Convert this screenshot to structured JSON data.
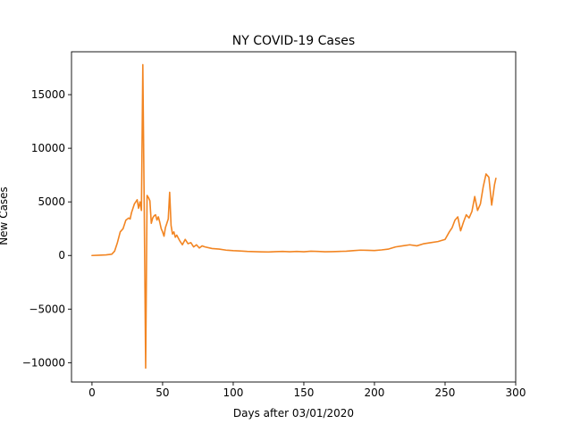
{
  "chart_data": {
    "type": "line",
    "title": "NY COVID-19 Cases",
    "xlabel": "Days after 03/01/2020",
    "ylabel": "New Cases",
    "xlim": [
      -14.5,
      300
    ],
    "ylim": [
      -11800,
      19000
    ],
    "x_ticks": [
      0,
      50,
      100,
      150,
      200,
      250,
      300
    ],
    "y_ticks": [
      -10000,
      -5000,
      0,
      5000,
      10000,
      15000
    ],
    "grid": false,
    "legend": "none",
    "series": [
      {
        "color": "#f28522",
        "x": [
          0,
          5,
          10,
          14,
          16,
          18,
          20,
          22,
          24,
          26,
          27,
          28,
          30,
          32,
          33,
          34,
          35,
          36,
          37,
          38,
          39,
          40,
          41,
          42,
          43,
          44,
          45,
          46,
          47,
          48,
          49,
          50,
          51,
          52,
          53,
          54,
          55,
          56,
          57,
          58,
          59,
          60,
          62,
          64,
          66,
          68,
          70,
          72,
          74,
          76,
          78,
          80,
          85,
          90,
          95,
          100,
          105,
          110,
          115,
          120,
          125,
          130,
          135,
          140,
          145,
          150,
          155,
          160,
          165,
          170,
          175,
          180,
          185,
          190,
          195,
          200,
          205,
          210,
          215,
          220,
          225,
          230,
          235,
          240,
          245,
          250,
          253,
          255,
          257,
          259,
          261,
          263,
          265,
          267,
          269,
          271,
          273,
          275,
          277,
          279,
          281,
          283,
          285,
          286
        ],
        "y": [
          0,
          30,
          60,
          120,
          400,
          1200,
          2200,
          2500,
          3300,
          3500,
          3400,
          4000,
          4800,
          5200,
          4400,
          5000,
          4200,
          17800,
          4500,
          -10500,
          5600,
          5400,
          5100,
          3000,
          3500,
          3700,
          3800,
          3300,
          3600,
          3100,
          2500,
          2200,
          1800,
          2600,
          3000,
          3400,
          5900,
          2800,
          2000,
          2200,
          1700,
          1900,
          1400,
          1000,
          1500,
          1100,
          1200,
          800,
          1000,
          700,
          900,
          800,
          650,
          600,
          500,
          450,
          420,
          380,
          360,
          340,
          330,
          360,
          380,
          350,
          380,
          350,
          400,
          380,
          350,
          360,
          380,
          400,
          450,
          500,
          480,
          460,
          520,
          600,
          800,
          900,
          1000,
          900,
          1100,
          1200,
          1300,
          1500,
          2200,
          2600,
          3300,
          3600,
          2300,
          3100,
          3800,
          3500,
          4100,
          5500,
          4200,
          4800,
          6400,
          7600,
          7300,
          4700,
          6600,
          7200
        ]
      }
    ]
  }
}
